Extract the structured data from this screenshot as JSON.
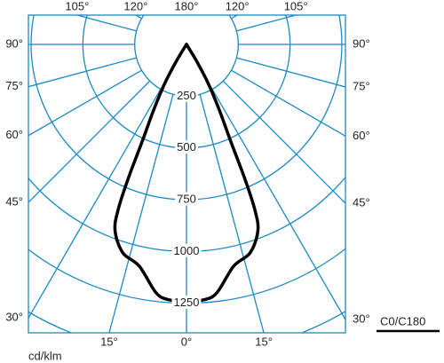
{
  "chart_data": {
    "type": "polar",
    "unit_label": "cd/klm",
    "rlim": [
      0,
      1500
    ],
    "rticks": [
      250,
      500,
      750,
      1000,
      1250
    ],
    "angle_ticks": [
      {
        "value": 0,
        "label": "0°"
      },
      {
        "value": 15,
        "label": "15°"
      },
      {
        "value": 30,
        "label": "30°"
      },
      {
        "value": 45,
        "label": "45°"
      },
      {
        "value": 60,
        "label": "60°"
      },
      {
        "value": 75,
        "label": "75°"
      },
      {
        "value": 90,
        "label": "90°"
      },
      {
        "value": 105,
        "label": "105°"
      },
      {
        "value": 120,
        "label": "120°"
      },
      {
        "value": 180,
        "label": "180°"
      }
    ],
    "grid_color": "#1b8ac4",
    "series": [
      {
        "name": "C0/C180",
        "color": "#000000",
        "angles": [
          0,
          4,
          7,
          12,
          17,
          21,
          22.5,
          23.5,
          24.5,
          26.5,
          29,
          31,
          33
        ],
        "values": [
          1240,
          1236,
          1208,
          1095,
          1052,
          962,
          858,
          700,
          517,
          358,
          220,
          100,
          0
        ]
      }
    ]
  }
}
